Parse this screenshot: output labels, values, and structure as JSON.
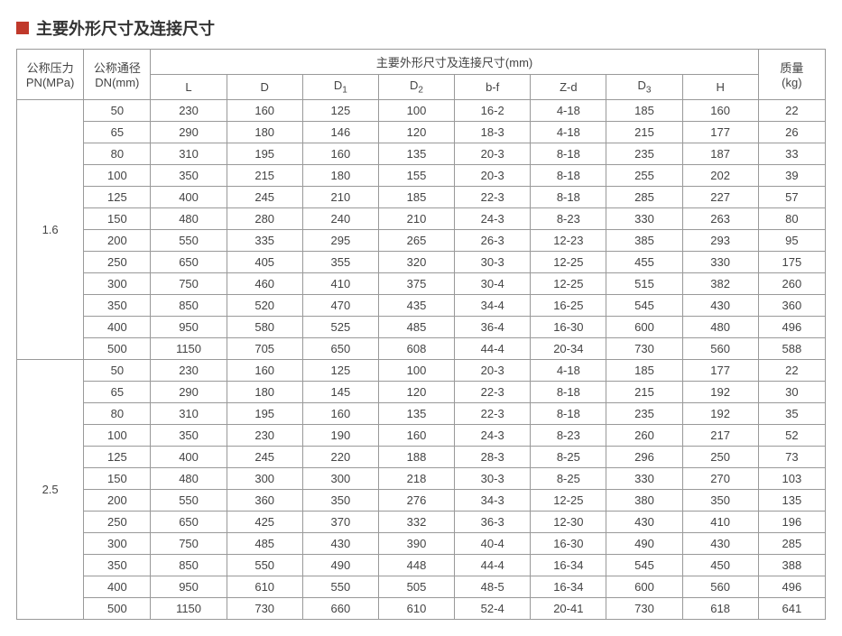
{
  "title": "主要外形尺寸及连接尺寸",
  "title_color": "#c0392b",
  "border_color": "#999999",
  "text_color": "#444444",
  "header": {
    "pn": "公称压力\nPN(MPa)",
    "dn": "公称通径\nDN(mm)",
    "dimensions_label": "主要外形尺寸及连接尺寸(mm)",
    "cols": [
      "L",
      "D",
      "D1",
      "D2",
      "b-f",
      "Z-d",
      "D3",
      "H"
    ],
    "mass": "质量\n(kg)"
  },
  "groups": [
    {
      "pn": "1.6",
      "rows": [
        [
          "50",
          "230",
          "160",
          "125",
          "100",
          "16-2",
          "4-18",
          "185",
          "160",
          "22"
        ],
        [
          "65",
          "290",
          "180",
          "146",
          "120",
          "18-3",
          "4-18",
          "215",
          "177",
          "26"
        ],
        [
          "80",
          "310",
          "195",
          "160",
          "135",
          "20-3",
          "8-18",
          "235",
          "187",
          "33"
        ],
        [
          "100",
          "350",
          "215",
          "180",
          "155",
          "20-3",
          "8-18",
          "255",
          "202",
          "39"
        ],
        [
          "125",
          "400",
          "245",
          "210",
          "185",
          "22-3",
          "8-18",
          "285",
          "227",
          "57"
        ],
        [
          "150",
          "480",
          "280",
          "240",
          "210",
          "24-3",
          "8-23",
          "330",
          "263",
          "80"
        ],
        [
          "200",
          "550",
          "335",
          "295",
          "265",
          "26-3",
          "12-23",
          "385",
          "293",
          "95"
        ],
        [
          "250",
          "650",
          "405",
          "355",
          "320",
          "30-3",
          "12-25",
          "455",
          "330",
          "175"
        ],
        [
          "300",
          "750",
          "460",
          "410",
          "375",
          "30-4",
          "12-25",
          "515",
          "382",
          "260"
        ],
        [
          "350",
          "850",
          "520",
          "470",
          "435",
          "34-4",
          "16-25",
          "545",
          "430",
          "360"
        ],
        [
          "400",
          "950",
          "580",
          "525",
          "485",
          "36-4",
          "16-30",
          "600",
          "480",
          "496"
        ],
        [
          "500",
          "1150",
          "705",
          "650",
          "608",
          "44-4",
          "20-34",
          "730",
          "560",
          "588"
        ]
      ]
    },
    {
      "pn": "2.5",
      "rows": [
        [
          "50",
          "230",
          "160",
          "125",
          "100",
          "20-3",
          "4-18",
          "185",
          "177",
          "22"
        ],
        [
          "65",
          "290",
          "180",
          "145",
          "120",
          "22-3",
          "8-18",
          "215",
          "192",
          "30"
        ],
        [
          "80",
          "310",
          "195",
          "160",
          "135",
          "22-3",
          "8-18",
          "235",
          "192",
          "35"
        ],
        [
          "100",
          "350",
          "230",
          "190",
          "160",
          "24-3",
          "8-23",
          "260",
          "217",
          "52"
        ],
        [
          "125",
          "400",
          "245",
          "220",
          "188",
          "28-3",
          "8-25",
          "296",
          "250",
          "73"
        ],
        [
          "150",
          "480",
          "300",
          "300",
          "218",
          "30-3",
          "8-25",
          "330",
          "270",
          "103"
        ],
        [
          "200",
          "550",
          "360",
          "350",
          "276",
          "34-3",
          "12-25",
          "380",
          "350",
          "135"
        ],
        [
          "250",
          "650",
          "425",
          "370",
          "332",
          "36-3",
          "12-30",
          "430",
          "410",
          "196"
        ],
        [
          "300",
          "750",
          "485",
          "430",
          "390",
          "40-4",
          "16-30",
          "490",
          "430",
          "285"
        ],
        [
          "350",
          "850",
          "550",
          "490",
          "448",
          "44-4",
          "16-34",
          "545",
          "450",
          "388"
        ],
        [
          "400",
          "950",
          "610",
          "550",
          "505",
          "48-5",
          "16-34",
          "600",
          "560",
          "496"
        ],
        [
          "500",
          "1150",
          "730",
          "660",
          "610",
          "52-4",
          "20-41",
          "730",
          "618",
          "641"
        ]
      ]
    }
  ]
}
